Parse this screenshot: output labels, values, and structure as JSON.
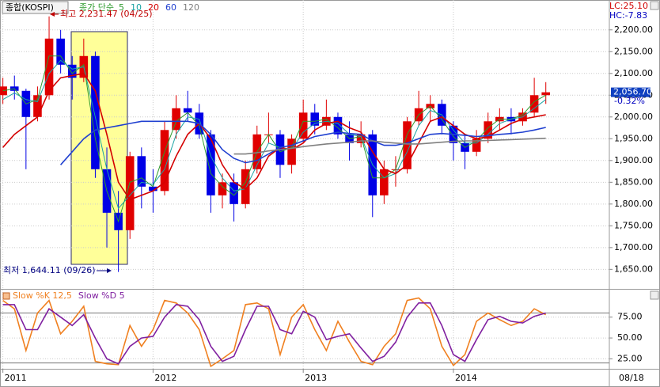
{
  "chart_data": [
    {
      "type": "candlestick",
      "title": "종합(KOSPI)",
      "ma_label": "종가 단순",
      "lc": "LC:25.10",
      "hc": "HC:-7.83",
      "high_annotation": "최고 2,231.47 (04/25)",
      "low_annotation": "최저 1,644.11 (09/26)",
      "last_price": {
        "value": 2056.7,
        "label": "2,056.70"
      },
      "change": "-0.32%",
      "date_label": "08/18",
      "x": [
        0,
        4,
        8,
        12,
        16,
        20,
        24,
        28,
        32,
        36,
        40,
        44,
        48,
        52,
        56,
        60,
        64,
        68,
        72,
        76,
        80,
        84,
        88,
        92,
        96,
        100,
        104,
        108,
        112,
        116,
        120,
        124,
        128,
        132,
        136,
        140,
        144,
        148,
        152,
        156,
        160,
        164,
        168,
        172,
        176,
        180,
        184,
        188
      ],
      "xlim": [
        -1,
        210
      ],
      "xticks": [
        {
          "value": 0,
          "label": "2011"
        },
        {
          "value": 52,
          "label": "2012"
        },
        {
          "value": 104,
          "label": "2013"
        },
        {
          "value": 156,
          "label": "2014"
        }
      ],
      "ylim": [
        1607,
        2265
      ],
      "yticks": [
        {
          "value": 2200,
          "label": "2,200.00"
        },
        {
          "value": 2150,
          "label": "2,150.00"
        },
        {
          "value": 2100,
          "label": "2,100.00"
        },
        {
          "value": 2050,
          "label": "2,050.00"
        },
        {
          "value": 2000,
          "label": "2,000.00"
        },
        {
          "value": 1950,
          "label": "1,950.00"
        },
        {
          "value": 1900,
          "label": "1,900.00"
        },
        {
          "value": 1850,
          "label": "1,850.00"
        },
        {
          "value": 1800,
          "label": "1,800.00"
        },
        {
          "value": 1750,
          "label": "1,750.00"
        },
        {
          "value": 1700,
          "label": "1,700.00"
        },
        {
          "value": 1650,
          "label": "1,650.00"
        }
      ],
      "grid": true,
      "up_color": "#e00000",
      "down_color": "#0000e6",
      "candles": [
        [
          2050,
          2090,
          2030,
          2070
        ],
        [
          2070,
          2095,
          2040,
          2060
        ],
        [
          2060,
          2065,
          1880,
          2000
        ],
        [
          2000,
          2070,
          1990,
          2050
        ],
        [
          2050,
          2231,
          2040,
          2180
        ],
        [
          2180,
          2200,
          2100,
          2120
        ],
        [
          2120,
          2140,
          2040,
          2090
        ],
        [
          2090,
          2180,
          2080,
          2140
        ],
        [
          2140,
          2150,
          1860,
          1880
        ],
        [
          1880,
          1930,
          1700,
          1780
        ],
        [
          1780,
          1830,
          1644,
          1740
        ],
        [
          1740,
          1920,
          1720,
          1910
        ],
        [
          1910,
          1930,
          1790,
          1840
        ],
        [
          1840,
          1880,
          1780,
          1830
        ],
        [
          1830,
          1990,
          1820,
          1970
        ],
        [
          1970,
          2050,
          1950,
          2020
        ],
        [
          2020,
          2060,
          1990,
          2010
        ],
        [
          2010,
          2030,
          1950,
          1960
        ],
        [
          1960,
          1970,
          1780,
          1820
        ],
        [
          1820,
          1870,
          1790,
          1850
        ],
        [
          1850,
          1870,
          1760,
          1800
        ],
        [
          1800,
          1900,
          1790,
          1880
        ],
        [
          1880,
          1980,
          1870,
          1960
        ],
        [
          1960,
          2010,
          1940,
          1960
        ],
        [
          1960,
          1970,
          1860,
          1890
        ],
        [
          1890,
          1960,
          1870,
          1950
        ],
        [
          1950,
          2040,
          1940,
          2010
        ],
        [
          2010,
          2030,
          1960,
          1980
        ],
        [
          1980,
          2040,
          1970,
          2000
        ],
        [
          2000,
          2010,
          1950,
          1960
        ],
        [
          1960,
          1990,
          1900,
          1940
        ],
        [
          1940,
          1990,
          1930,
          1960
        ],
        [
          1960,
          1970,
          1770,
          1820
        ],
        [
          1820,
          1900,
          1800,
          1880
        ],
        [
          1880,
          1910,
          1840,
          1880
        ],
        [
          1880,
          2000,
          1870,
          1990
        ],
        [
          1990,
          2060,
          1980,
          2020
        ],
        [
          2020,
          2050,
          1990,
          2030
        ],
        [
          2030,
          2040,
          1960,
          1980
        ],
        [
          1980,
          1990,
          1900,
          1940
        ],
        [
          1940,
          1960,
          1880,
          1920
        ],
        [
          1920,
          1970,
          1910,
          1950
        ],
        [
          1950,
          2010,
          1940,
          1990
        ],
        [
          1990,
          2020,
          1970,
          2000
        ],
        [
          2000,
          2020,
          1960,
          1990
        ],
        [
          1990,
          2020,
          1980,
          2010
        ],
        [
          2010,
          2090,
          2000,
          2050
        ],
        [
          2050,
          2080,
          2030,
          2056.7
        ]
      ],
      "series": [
        {
          "name": "5",
          "color": "#2e9b2e",
          "values": [
            2060,
            2065,
            2030,
            2040,
            2140,
            2140,
            2100,
            2120,
            1950,
            1830,
            1760,
            1850,
            1860,
            1840,
            1920,
            1990,
            2010,
            1980,
            1870,
            1840,
            1820,
            1850,
            1920,
            1960,
            1920,
            1930,
            1990,
            1990,
            1995,
            1975,
            1950,
            1955,
            1860,
            1860,
            1880,
            1960,
            2005,
            2025,
            1995,
            1955,
            1930,
            1945,
            1975,
            1995,
            1995,
            2005,
            2035,
            2050
          ]
        },
        {
          "name": "10",
          "color": "#1aa3a3",
          "values": [
            2040,
            2055,
            2040,
            2035,
            2100,
            2130,
            2110,
            2115,
            2000,
            1880,
            1790,
            1820,
            1850,
            1845,
            1880,
            1960,
            2000,
            1995,
            1910,
            1860,
            1830,
            1835,
            1890,
            1940,
            1930,
            1925,
            1965,
            1985,
            1990,
            1985,
            1960,
            1955,
            1890,
            1860,
            1870,
            1920,
            1980,
            2015,
            2005,
            1970,
            1940,
            1940,
            1960,
            1985,
            1995,
            2000,
            2020,
            2040
          ]
        },
        {
          "name": "20",
          "color": "#d40000",
          "values": [
            1930,
            1960,
            1980,
            2000,
            2060,
            2090,
            2095,
            2100,
            2060,
            1960,
            1850,
            1810,
            1820,
            1830,
            1850,
            1910,
            1960,
            1985,
            1950,
            1890,
            1850,
            1835,
            1860,
            1910,
            1930,
            1925,
            1940,
            1970,
            1985,
            1990,
            1975,
            1965,
            1920,
            1880,
            1870,
            1890,
            1940,
            1990,
            2000,
            1980,
            1960,
            1950,
            1955,
            1970,
            1985,
            1995,
            2000,
            2005
          ]
        },
        {
          "name": "60",
          "color": "#2040d0",
          "values": [
            null,
            null,
            null,
            null,
            null,
            1890,
            1920,
            1950,
            1970,
            1975,
            1980,
            1985,
            1990,
            1990,
            1990,
            1990,
            1990,
            1985,
            1960,
            1925,
            1905,
            1895,
            1900,
            1915,
            1930,
            1935,
            1945,
            1955,
            1960,
            1965,
            1962,
            1960,
            1945,
            1935,
            1935,
            1940,
            1950,
            1960,
            1962,
            1960,
            1958,
            1955,
            1957,
            1960,
            1962,
            1965,
            1970,
            1976
          ]
        },
        {
          "name": "120",
          "color": "#808080",
          "values": [
            null,
            null,
            null,
            null,
            null,
            null,
            null,
            null,
            null,
            null,
            null,
            null,
            null,
            null,
            null,
            null,
            null,
            null,
            null,
            null,
            1915,
            1915,
            1918,
            1922,
            1925,
            1928,
            1932,
            1935,
            1938,
            1940,
            1942,
            1945,
            1945,
            1942,
            1940,
            1938,
            1938,
            1940,
            1942,
            1944,
            1945,
            1945,
            1946,
            1947,
            1948,
            1949,
            1950,
            1951
          ]
        }
      ]
    },
    {
      "type": "stochastic",
      "ylim": [
        14,
        107
      ],
      "yticks": [
        {
          "value": 75,
          "label": "75.00"
        },
        {
          "value": 50,
          "label": "50.00"
        },
        {
          "value": 25,
          "label": "25.00"
        }
      ],
      "levels": [
        80,
        20
      ],
      "series": [
        {
          "name": "Slow %K 12,5",
          "color": "#f08020",
          "values": [
            95,
            85,
            35,
            80,
            95,
            55,
            70,
            88,
            22,
            19,
            18,
            65,
            40,
            60,
            95,
            92,
            80,
            60,
            16,
            25,
            35,
            90,
            92,
            85,
            30,
            75,
            90,
            60,
            35,
            70,
            45,
            22,
            18,
            40,
            55,
            95,
            98,
            85,
            40,
            17,
            30,
            70,
            80,
            72,
            65,
            70,
            85,
            78
          ]
        },
        {
          "name": "Slow %D 5",
          "color": "#8020a0",
          "values": [
            90,
            90,
            60,
            60,
            85,
            75,
            65,
            78,
            50,
            25,
            19,
            40,
            50,
            52,
            75,
            90,
            88,
            72,
            40,
            22,
            28,
            60,
            88,
            88,
            60,
            55,
            82,
            75,
            48,
            52,
            55,
            38,
            22,
            28,
            45,
            75,
            92,
            92,
            65,
            30,
            22,
            48,
            72,
            76,
            70,
            68,
            76,
            80
          ]
        }
      ]
    }
  ]
}
